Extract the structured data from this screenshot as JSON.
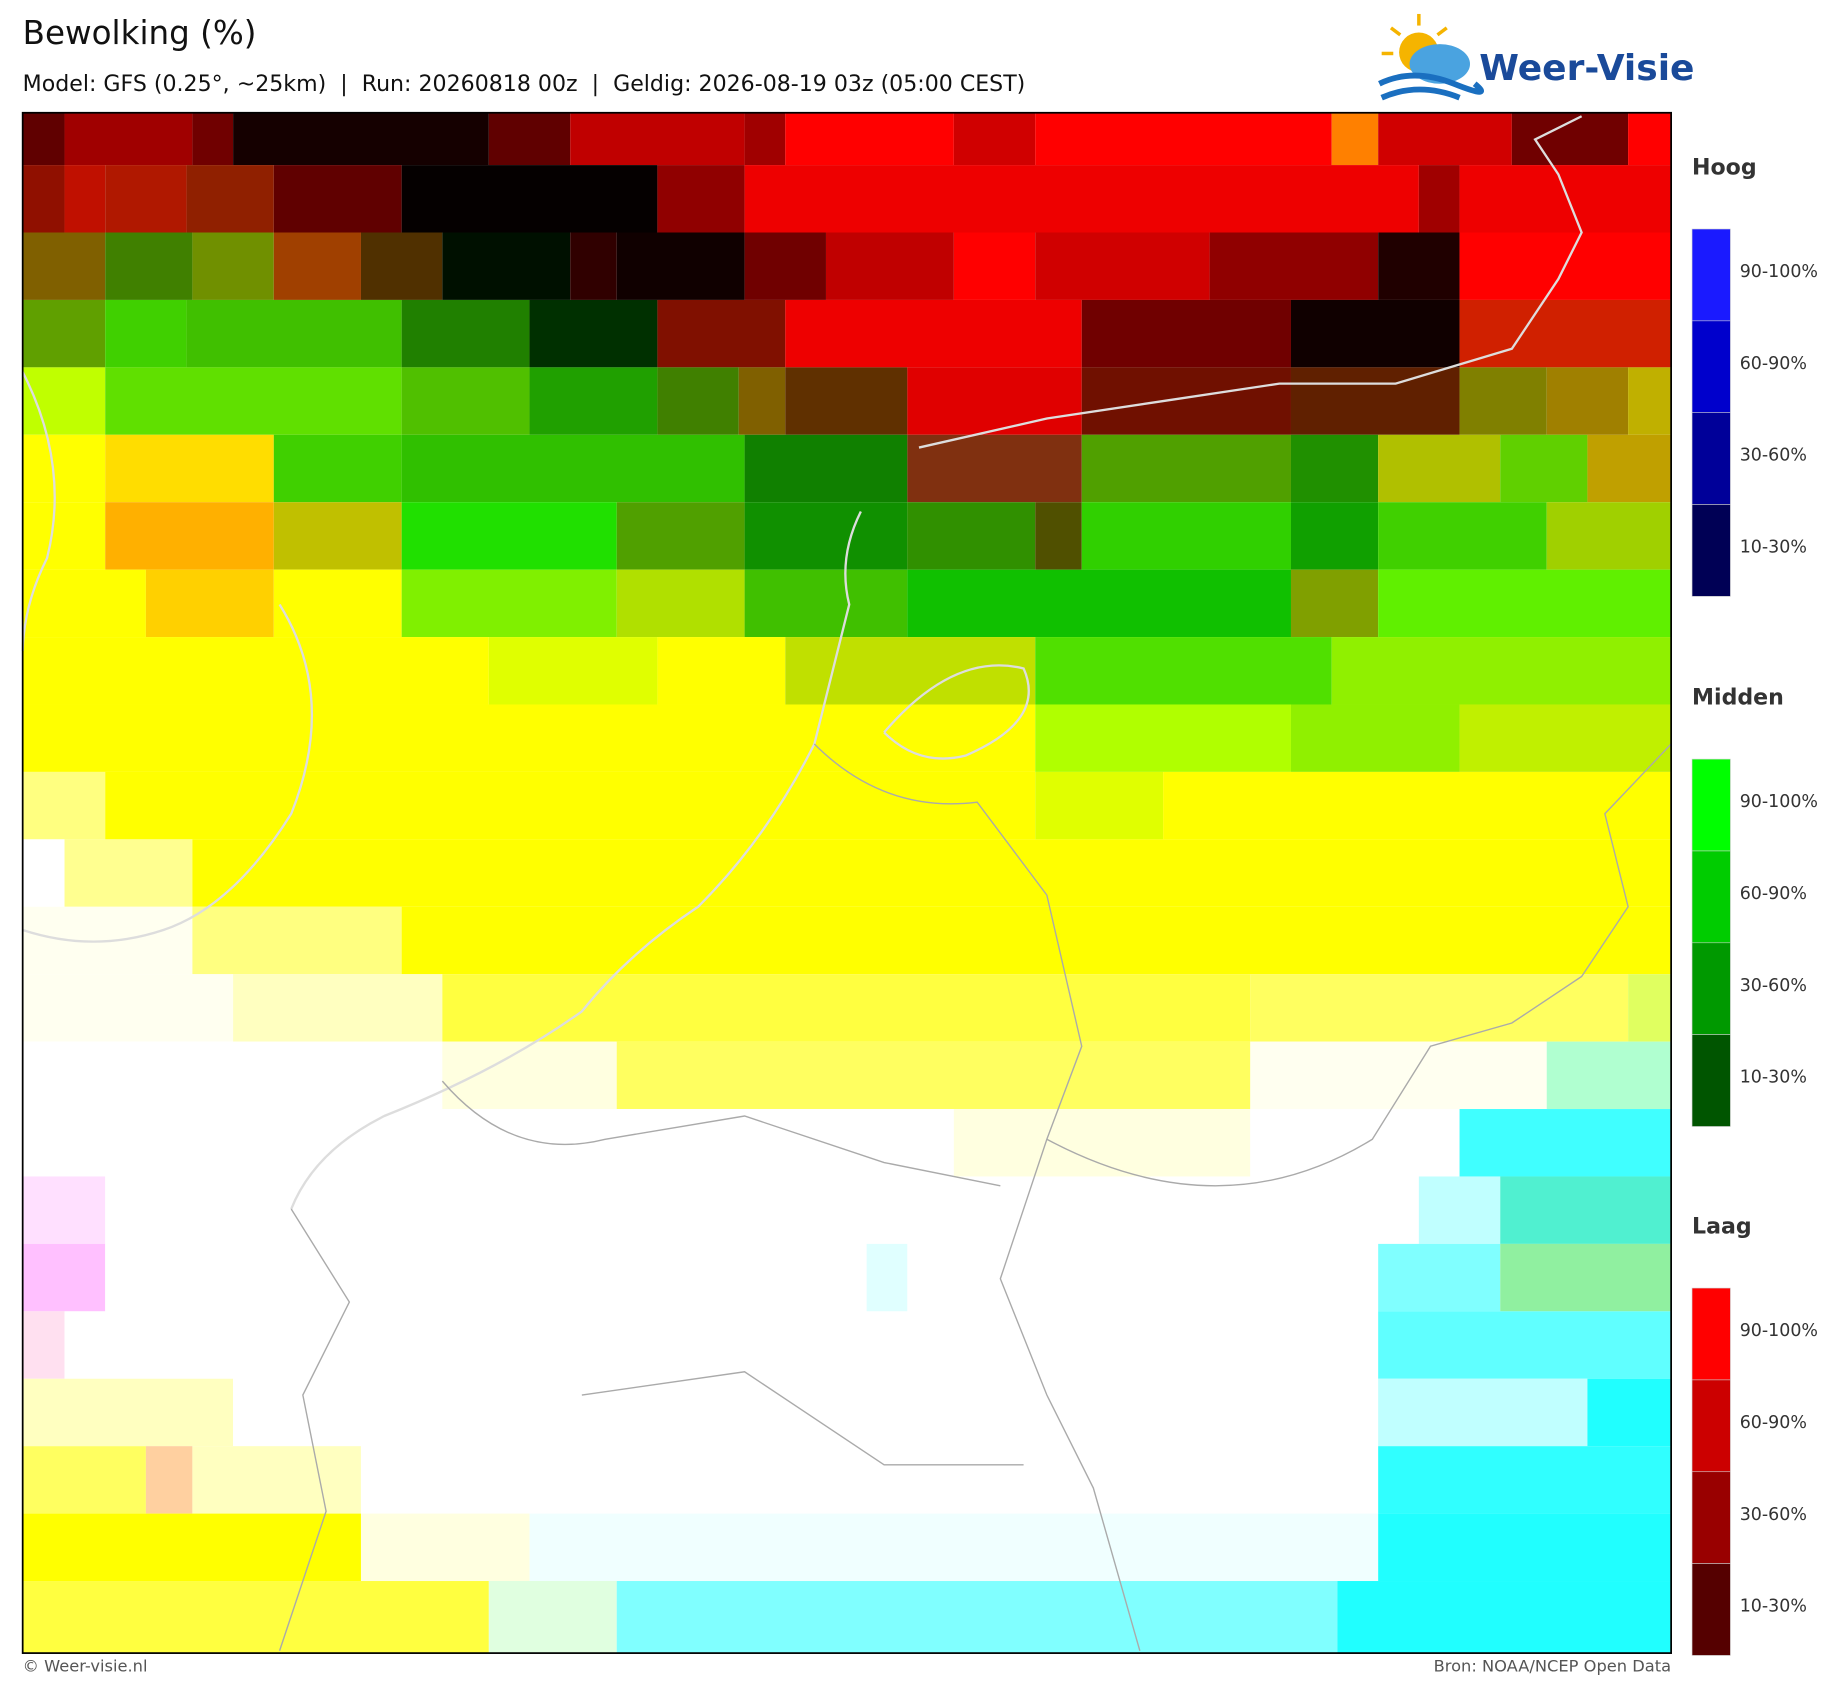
{
  "header": {
    "title": "Bewolking (%)",
    "subtitle": "Model: GFS (0.25°, ~25km)  |  Run: 20260818 00z  |  Geldig: 2026-08-19 03z (05:00 CEST)"
  },
  "logo": {
    "text": "Weer-Visie"
  },
  "legend": {
    "groups": [
      {
        "title": "Hoog",
        "items": [
          "90-100%",
          "60-90%",
          "30-60%",
          "10-30%"
        ]
      },
      {
        "title": "Midden",
        "items": [
          "90-100%",
          "60-90%",
          "30-60%",
          "10-30%"
        ]
      },
      {
        "title": "Laag",
        "items": [
          "90-100%",
          "60-90%",
          "30-60%",
          "10-30%"
        ]
      }
    ]
  },
  "footer": {
    "left": "© Weer-visie.nl",
    "right": "Bron: NOAA/NCEP Open Data"
  }
}
